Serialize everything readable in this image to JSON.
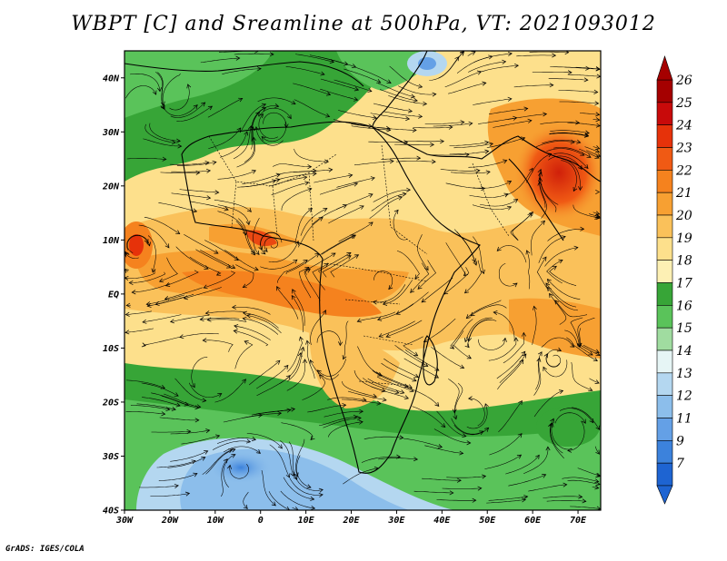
{
  "title": "WBPT [C] and Sreamline at 500hPa, VT: 2021093012",
  "credit": "GrADS: IGES/COLA",
  "map": {
    "lon_range": [
      -30,
      75
    ],
    "lat_range": [
      -40,
      45
    ],
    "lon_ticks": [
      {
        "value": -30,
        "label": "30W"
      },
      {
        "value": -20,
        "label": "20W"
      },
      {
        "value": -10,
        "label": "10W"
      },
      {
        "value": 0,
        "label": "0"
      },
      {
        "value": 10,
        "label": "10E"
      },
      {
        "value": 20,
        "label": "20E"
      },
      {
        "value": 30,
        "label": "30E"
      },
      {
        "value": 40,
        "label": "40E"
      },
      {
        "value": 50,
        "label": "50E"
      },
      {
        "value": 60,
        "label": "60E"
      },
      {
        "value": 70,
        "label": "70E"
      }
    ],
    "lat_ticks": [
      {
        "value": 40,
        "label": "40N"
      },
      {
        "value": 30,
        "label": "30N"
      },
      {
        "value": 20,
        "label": "20N"
      },
      {
        "value": 10,
        "label": "10N"
      },
      {
        "value": 0,
        "label": "EQ"
      },
      {
        "value": -10,
        "label": "10S"
      },
      {
        "value": -20,
        "label": "20S"
      },
      {
        "value": -30,
        "label": "30S"
      },
      {
        "value": -40,
        "label": "40S"
      }
    ]
  },
  "colorbar": {
    "labels": [
      "26",
      "25",
      "24",
      "23",
      "22",
      "21",
      "20",
      "19",
      "18",
      "17",
      "16",
      "15",
      "14",
      "13",
      "12",
      "11",
      "9",
      "7"
    ],
    "colors": [
      "#a50000",
      "#c80a0a",
      "#e6320a",
      "#f05a14",
      "#f5821e",
      "#f7a032",
      "#fac15a",
      "#fde08c",
      "#fdf0b4",
      "#37a537",
      "#5ac35a",
      "#a0dca0",
      "#e6f5f5",
      "#b4d7f0",
      "#8cbeeb",
      "#64a0e6",
      "#3c82dc",
      "#1e64d2"
    ]
  }
}
